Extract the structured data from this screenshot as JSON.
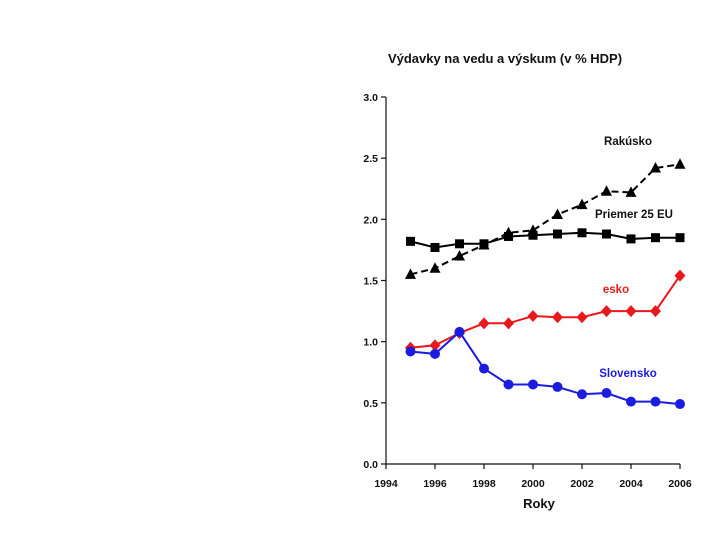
{
  "chart_data": {
    "type": "line",
    "title": "Výdavky na vedu a výskum (v % HDP)",
    "xlabel": "Roky",
    "ylabel": "",
    "xlim": [
      1994,
      2006
    ],
    "ylim": [
      0,
      3
    ],
    "xticks": [
      "1994",
      "1996",
      "1998",
      "2000",
      "2002",
      "2004",
      "2006"
    ],
    "yticks": [
      "0.0",
      "0.5",
      "1.0",
      "1.5",
      "2.0",
      "2.5",
      "3.0"
    ],
    "x": [
      1995,
      1996,
      1997,
      1998,
      1999,
      2000,
      2001,
      2002,
      2003,
      2004,
      2005,
      2006
    ],
    "series": [
      {
        "name": "Rakúsko",
        "color": "#000000",
        "dashed": true,
        "marker": "triangle",
        "values": [
          1.55,
          1.6,
          1.7,
          1.79,
          1.89,
          1.91,
          2.04,
          2.12,
          2.23,
          2.22,
          2.42,
          2.45
        ]
      },
      {
        "name": "Priemer 25 EU",
        "color": "#000000",
        "dashed": false,
        "marker": "square",
        "values": [
          1.82,
          1.77,
          1.8,
          1.8,
          1.86,
          1.87,
          1.88,
          1.89,
          1.88,
          1.84,
          1.85,
          1.85
        ]
      },
      {
        "name": "esko",
        "color": "#e8191c",
        "dashed": false,
        "marker": "diamond",
        "values": [
          0.95,
          0.97,
          1.07,
          1.15,
          1.15,
          1.21,
          1.2,
          1.2,
          1.25,
          1.25,
          1.25,
          1.54
        ]
      },
      {
        "name": "Slovensko",
        "color": "#1c1ce0",
        "dashed": false,
        "marker": "circle",
        "values": [
          0.92,
          0.9,
          1.08,
          0.78,
          0.65,
          0.65,
          0.63,
          0.57,
          0.58,
          0.51,
          0.51,
          0.49
        ]
      }
    ]
  }
}
